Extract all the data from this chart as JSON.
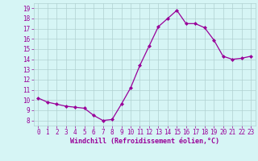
{
  "x": [
    0,
    1,
    2,
    3,
    4,
    5,
    6,
    7,
    8,
    9,
    10,
    11,
    12,
    13,
    14,
    15,
    16,
    17,
    18,
    19,
    20,
    21,
    22,
    23
  ],
  "y": [
    10.2,
    9.8,
    9.6,
    9.4,
    9.3,
    9.2,
    8.5,
    8.0,
    8.1,
    9.6,
    11.2,
    13.4,
    15.3,
    17.2,
    18.0,
    18.8,
    17.5,
    17.5,
    17.1,
    15.9,
    14.3,
    14.0,
    14.1,
    14.3
  ],
  "line_color": "#990099",
  "marker": "D",
  "marker_size": 2,
  "bg_color": "#d6f5f5",
  "grid_color": "#b0d0d0",
  "xlabel": "Windchill (Refroidissement éolien,°C)",
  "xlabel_color": "#990099",
  "tick_color": "#990099",
  "ylim_min": 7.5,
  "ylim_max": 19.5,
  "xlim_min": -0.5,
  "xlim_max": 23.5,
  "yticks": [
    8,
    9,
    10,
    11,
    12,
    13,
    14,
    15,
    16,
    17,
    18,
    19
  ],
  "xticks": [
    0,
    1,
    2,
    3,
    4,
    5,
    6,
    7,
    8,
    9,
    10,
    11,
    12,
    13,
    14,
    15,
    16,
    17,
    18,
    19,
    20,
    21,
    22,
    23
  ],
  "tick_fontsize": 5.5,
  "xlabel_fontsize": 6.0,
  "linewidth": 0.9
}
